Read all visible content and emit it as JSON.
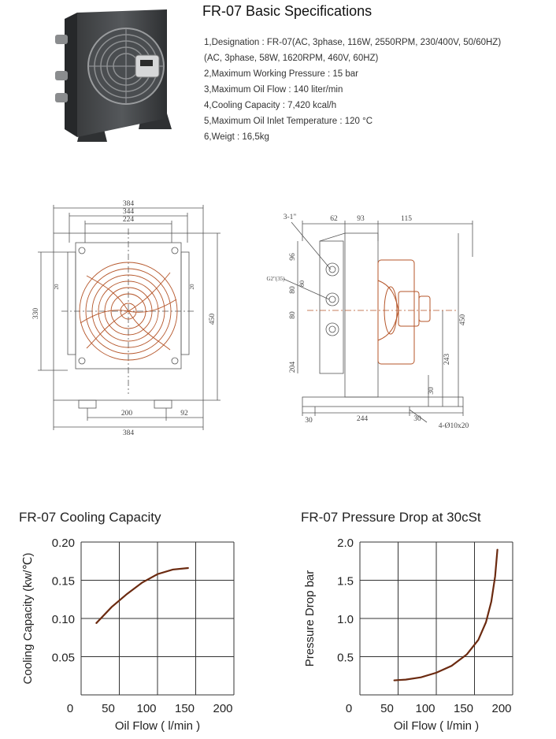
{
  "specs": {
    "title": "FR-07 Basic Specifications",
    "items": [
      "1,Designation : FR-07(AC, 3phase, 116W, 2550RPM, 230/400V, 50/60HZ)",
      "(AC, 3phase, 58W, 1620RPM, 460V, 60HZ)",
      "2,Maximum Working Pressure : 15 bar",
      "3,Maximum Oil Flow : 140 liter/min",
      "4,Cooling Capacity : 7,420 kcal/h",
      "5,Maximum Oil Inlet Temperature : 120 °C",
      "6,Weigt : 16,5kg"
    ]
  },
  "front_view": {
    "dims": [
      "384",
      "344",
      "224",
      "330",
      "450",
      "20",
      "20",
      "200",
      "92",
      "384"
    ]
  },
  "side_view": {
    "dims": [
      "3-1\"",
      "62",
      "93",
      "115",
      "96",
      "G2\"(35)",
      "80",
      "80",
      "80",
      "204",
      "450",
      "243",
      "30",
      "30",
      "244",
      "30",
      "4-Ø10x20"
    ]
  },
  "chart_data": [
    {
      "type": "line",
      "title": "FR-07 Cooling Capacity",
      "xlabel": "Oil Flow ( l/min )",
      "ylabel": "Cooling Capacity (kw/℃)",
      "xlim": [
        0,
        200
      ],
      "ylim": [
        0,
        0.2
      ],
      "xticks": [
        "0",
        "50",
        "100",
        "150",
        "200"
      ],
      "yticks": [
        "0.20",
        "0.15",
        "0.10",
        "0.05"
      ],
      "grid": true,
      "line_color": "#6b2a10",
      "series": [
        {
          "x": [
            20,
            40,
            60,
            80,
            100,
            120,
            140
          ],
          "y": [
            0.094,
            0.115,
            0.132,
            0.147,
            0.158,
            0.164,
            0.166
          ]
        }
      ]
    },
    {
      "type": "line",
      "title": "FR-07 Pressure Drop at 30cSt",
      "xlabel": "Oil Flow ( l/min )",
      "ylabel": "Pressure Drop bar",
      "xlim": [
        0,
        200
      ],
      "ylim": [
        0,
        2.0
      ],
      "xticks": [
        "0",
        "50",
        "100",
        "150",
        "200"
      ],
      "yticks": [
        "2.0",
        "1.5",
        "1.0",
        "0.5"
      ],
      "grid": true,
      "line_color": "#6b2a10",
      "series": [
        {
          "x": [
            45,
            60,
            80,
            100,
            120,
            140,
            155,
            165,
            172,
            177,
            180
          ],
          "y": [
            0.19,
            0.2,
            0.23,
            0.29,
            0.38,
            0.53,
            0.72,
            0.95,
            1.22,
            1.55,
            1.9
          ]
        }
      ]
    }
  ]
}
